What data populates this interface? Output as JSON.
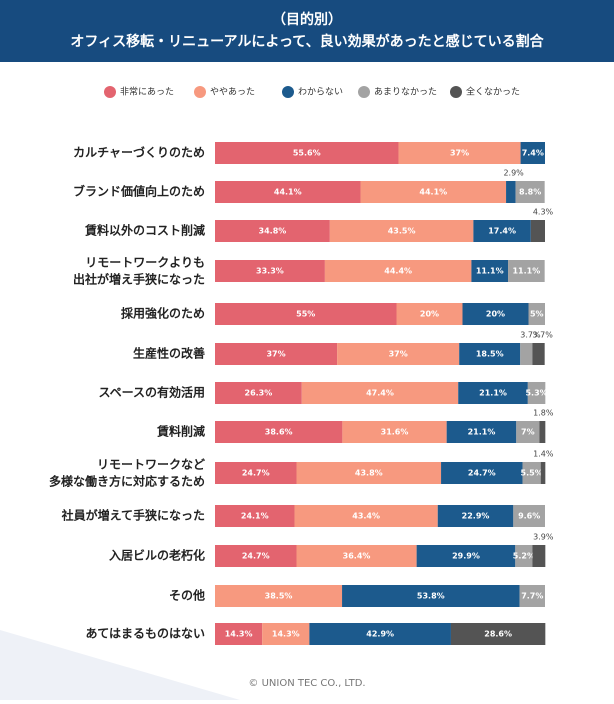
{
  "chart_data": {
    "type": "stacked-bar-horizontal",
    "title_top": "（目的別）",
    "title": "オフィス移転・リニューアルによって、良い効果があったと感じている割合",
    "categories": [
      "カルチャーづくりのため",
      "ブランド価値向上のため",
      "賃料以外のコスト削減",
      "リモートワークよりも\n出社が増え手狭になった",
      "採用強化のため",
      "生産性の改善",
      "スペースの有効活用",
      "賃料削減",
      "リモートワークなど\n多様な働き方に対応するため",
      "社員が増えて手狭になった",
      "入居ビルの老朽化",
      "その他",
      "あてはまるものはない"
    ],
    "xlim": [
      0,
      100
    ],
    "series": [
      {
        "name": "非常にあった",
        "color": "#e3646f",
        "values": [
          55.6,
          44.1,
          34.8,
          33.3,
          55,
          37,
          26.3,
          38.6,
          24.7,
          24.1,
          24.7,
          null,
          14.3
        ],
        "value_labels": [
          "55.6%",
          "44.1%",
          "34.8%",
          "33.3%",
          "55%",
          "37%",
          "26.3%",
          "38.6%",
          "24.7%",
          "24.1%",
          "24.7%",
          null,
          "14.3%"
        ]
      },
      {
        "name": "ややあった",
        "color": "#f7997f",
        "values": [
          37,
          44.1,
          43.5,
          44.4,
          20,
          37,
          47.4,
          31.6,
          43.8,
          43.4,
          36.4,
          38.5,
          14.3
        ],
        "value_labels": [
          "37%",
          "44.1%",
          "43.5%",
          "44.4%",
          "20%",
          "37%",
          "47.4%",
          "31.6%",
          "43.8%",
          "43.4%",
          "36.4%",
          "38.5%",
          "14.3%"
        ]
      },
      {
        "name": "わからない",
        "color": "#1c5a8d",
        "values": [
          7.4,
          2.9,
          17.4,
          11.1,
          20,
          18.5,
          21.1,
          21.1,
          24.7,
          22.9,
          29.9,
          53.8,
          42.9
        ],
        "value_labels": [
          "7.4%",
          "2.9%",
          "17.4%",
          "11.1%",
          "20%",
          "18.5%",
          "21.1%",
          "21.1%",
          "24.7%",
          "22.9%",
          "29.9%",
          "53.8%",
          "42.9%"
        ]
      },
      {
        "name": "あまりなかった",
        "color": "#a3a3a3",
        "values": [
          null,
          8.8,
          null,
          11.1,
          5,
          3.7,
          5.3,
          7,
          5.5,
          9.6,
          5.2,
          7.7,
          null
        ],
        "value_labels": [
          null,
          "8.8%",
          null,
          "11.1%",
          "5%",
          "3.7%",
          "5.3%",
          "7%",
          "5.5%",
          "9.6%",
          "5.2%",
          "7.7%",
          null
        ]
      },
      {
        "name": "全くなかった",
        "color": "#545454",
        "values": [
          null,
          null,
          4.3,
          null,
          null,
          3.7,
          null,
          1.8,
          1.4,
          null,
          3.9,
          null,
          28.6
        ],
        "value_labels": [
          null,
          null,
          "4.3%",
          null,
          null,
          "3.7%",
          null,
          "1.8%",
          "1.4%",
          null,
          "3.9%",
          null,
          "28.6%"
        ]
      }
    ],
    "footer": "© UNION TEC CO., LTD."
  }
}
